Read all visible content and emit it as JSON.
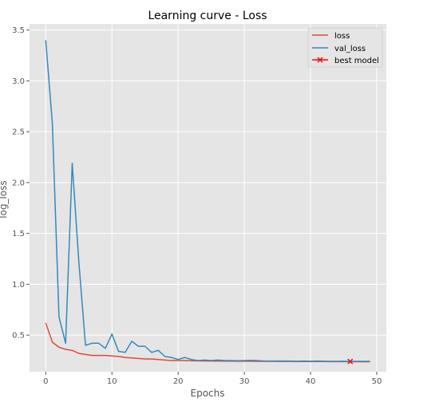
{
  "chart_data": {
    "type": "line",
    "title": "Learning curve - Loss",
    "xlabel": "Epochs",
    "ylabel": "log_loss",
    "xlim": [
      -2.45,
      51.45
    ],
    "ylim": [
      0.14,
      3.56
    ],
    "xticks": [
      0,
      10,
      20,
      30,
      40,
      50
    ],
    "yticks": [
      0.5,
      1.0,
      1.5,
      2.0,
      2.5,
      3.0,
      3.5
    ],
    "grid": true,
    "legend_position": "top-right",
    "x": [
      0,
      1,
      2,
      3,
      4,
      5,
      6,
      7,
      8,
      9,
      10,
      11,
      12,
      13,
      14,
      15,
      16,
      17,
      18,
      19,
      20,
      21,
      22,
      23,
      24,
      25,
      26,
      27,
      28,
      29,
      30,
      31,
      32,
      33,
      34,
      35,
      36,
      37,
      38,
      39,
      40,
      41,
      42,
      43,
      44,
      45,
      46,
      47,
      48,
      49
    ],
    "series": [
      {
        "name": "loss",
        "color": "#e24a33",
        "values": [
          0.62,
          0.43,
          0.38,
          0.36,
          0.35,
          0.32,
          0.31,
          0.3,
          0.3,
          0.3,
          0.295,
          0.29,
          0.28,
          0.275,
          0.27,
          0.265,
          0.265,
          0.26,
          0.255,
          0.25,
          0.25,
          0.25,
          0.248,
          0.247,
          0.246,
          0.245,
          0.245,
          0.244,
          0.244,
          0.243,
          0.243,
          0.243,
          0.242,
          0.242,
          0.242,
          0.241,
          0.241,
          0.241,
          0.24,
          0.24,
          0.24,
          0.24,
          0.24,
          0.239,
          0.239,
          0.239,
          0.239,
          0.238,
          0.238,
          0.238
        ]
      },
      {
        "name": "val_loss",
        "color": "#348abd",
        "values": [
          3.4,
          2.58,
          0.68,
          0.42,
          2.19,
          1.22,
          0.4,
          0.42,
          0.42,
          0.37,
          0.51,
          0.34,
          0.33,
          0.44,
          0.39,
          0.39,
          0.33,
          0.35,
          0.29,
          0.28,
          0.26,
          0.28,
          0.26,
          0.25,
          0.255,
          0.25,
          0.255,
          0.25,
          0.25,
          0.248,
          0.25,
          0.252,
          0.25,
          0.245,
          0.245,
          0.245,
          0.245,
          0.245,
          0.243,
          0.245,
          0.243,
          0.245,
          0.243,
          0.242,
          0.242,
          0.243,
          0.241,
          0.242,
          0.242,
          0.242
        ]
      }
    ],
    "best_model": {
      "name": "best model",
      "color": "#ff0000",
      "x": 46,
      "y": 0.241
    }
  }
}
